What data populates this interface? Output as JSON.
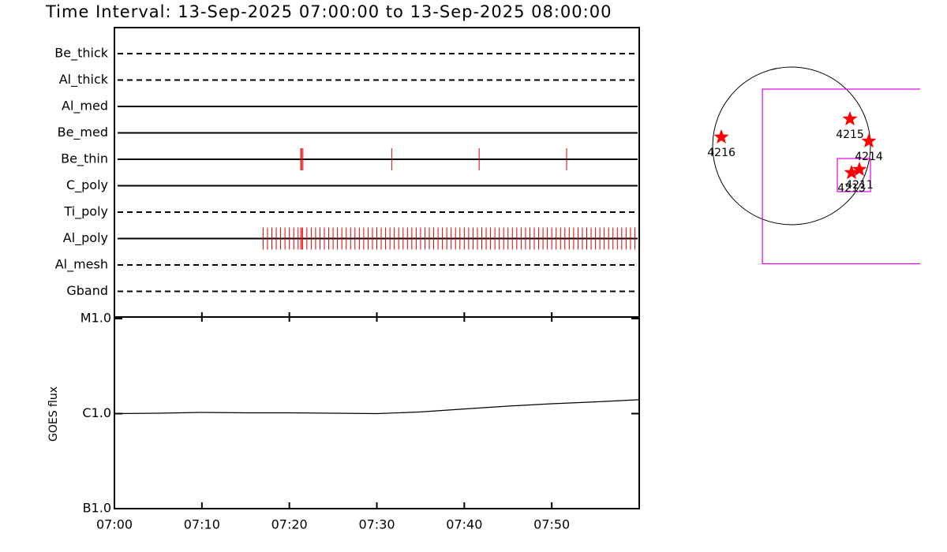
{
  "title": "Time Interval: 13-Sep-2025 07:00:00 to 13-Sep-2025 08:00:00",
  "chart_data": [
    {
      "type": "event",
      "color": "#e00000",
      "xlim": [
        0,
        60
      ],
      "xticks": [
        {
          "value": 0,
          "label": "07:00"
        },
        {
          "value": 10,
          "label": "07:10"
        },
        {
          "value": 20,
          "label": "07:20"
        },
        {
          "value": 30,
          "label": "07:30"
        },
        {
          "value": 40,
          "label": "07:40"
        },
        {
          "value": 50,
          "label": "07:50"
        }
      ],
      "series": [
        {
          "name": "Be_thick",
          "style": "dashed",
          "values": []
        },
        {
          "name": "Al_thick",
          "style": "dashed",
          "values": []
        },
        {
          "name": "Al_med",
          "style": "solid",
          "values": []
        },
        {
          "name": "Be_med",
          "style": "solid",
          "values": []
        },
        {
          "name": "Be_thin",
          "style": "solid",
          "values": [
            21.3,
            21.4,
            21.55,
            31.7,
            41.7,
            51.7
          ]
        },
        {
          "name": "C_poly",
          "style": "solid",
          "values": []
        },
        {
          "name": "Ti_poly",
          "style": "dashed",
          "values": []
        },
        {
          "name": "Al_poly",
          "style": "solid",
          "values": [
            17,
            17.5,
            18,
            18.5,
            19,
            19.5,
            20,
            20.5,
            21,
            21.3,
            21.45,
            21.5,
            22,
            22.5,
            23,
            23.5,
            24,
            24.5,
            25,
            25.5,
            26,
            26.5,
            27,
            27.5,
            28,
            28.5,
            29,
            29.5,
            30,
            30.5,
            31,
            31.5,
            32,
            32.5,
            33,
            33.5,
            34,
            34.5,
            35,
            35.5,
            36,
            36.5,
            37,
            37.5,
            38,
            38.5,
            39,
            39.5,
            40,
            40.5,
            41,
            41.5,
            42,
            42.5,
            43,
            43.5,
            44,
            44.5,
            45,
            45.5,
            46,
            46.5,
            47,
            47.5,
            48,
            48.5,
            49,
            49.5,
            50,
            50.5,
            51,
            51.5,
            52,
            52.5,
            53,
            53.5,
            54,
            54.5,
            55,
            55.5,
            56,
            56.5,
            57,
            57.5,
            58,
            58.5,
            59,
            59.5
          ]
        },
        {
          "name": "Al_mesh",
          "style": "dashed",
          "values": []
        },
        {
          "name": "Gband",
          "style": "dashed",
          "values": []
        }
      ]
    },
    {
      "type": "line",
      "ylabel": "GOES flux",
      "log_scale": true,
      "xlim": [
        0,
        60
      ],
      "ylim": [
        1e-07,
        1e-05
      ],
      "yticks": [
        {
          "value": 1e-07,
          "label": "B1.0"
        },
        {
          "value": 1e-06,
          "label": "C1.0"
        },
        {
          "value": 1e-05,
          "label": "M1.0"
        }
      ],
      "x": [
        0,
        5,
        10,
        15,
        20,
        25,
        30,
        35,
        40,
        45,
        50,
        55,
        60
      ],
      "series": [
        {
          "color": "#000000",
          "values": [
            1e-06,
            1.01e-06,
            1.03e-06,
            1.02e-06,
            1.02e-06,
            1.01e-06,
            1e-06,
            1.04e-06,
            1.12e-06,
            1.2e-06,
            1.27e-06,
            1.33e-06,
            1.4e-06
          ]
        }
      ]
    },
    {
      "type": "map",
      "xlim": [
        -1264,
        1539
      ],
      "ylim": [
        -1425,
        1425
      ],
      "solar_radius": 950,
      "boxes": [
        {
          "color": "#e000e0",
          "x": [
            -351,
            1900
          ],
          "y": [
            -1420,
            684
          ]
        },
        {
          "color": "#e000e0",
          "x": [
            551,
            950
          ],
          "y": [
            -551,
            -152
          ]
        }
      ],
      "points": [
        {
          "label": "4216",
          "x": -845,
          "y": 105
        },
        {
          "label": "4215",
          "x": 703,
          "y": 323
        },
        {
          "label": "4214",
          "x": 931,
          "y": 57
        },
        {
          "label": "4213",
          "x": 722,
          "y": -323
        },
        {
          "label": "4211",
          "x": 817,
          "y": -285
        }
      ],
      "color": "#ff0000"
    }
  ]
}
